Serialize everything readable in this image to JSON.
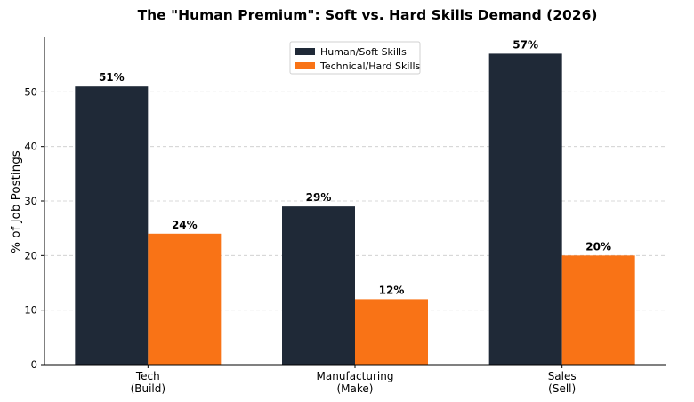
{
  "chart_data": {
    "type": "bar",
    "title": "The \"Human Premium\": Soft vs. Hard Skills Demand (2026)",
    "xlabel": "",
    "ylabel": "% of Job Postings",
    "categories": [
      [
        "Tech",
        "(Build)"
      ],
      [
        "Manufacturing",
        "(Make)"
      ],
      [
        "Sales",
        "(Sell)"
      ]
    ],
    "series": [
      {
        "name": "Human/Soft Skills",
        "color": "#1f2937",
        "values": [
          51,
          29,
          57
        ],
        "labels": [
          "51%",
          "29%",
          "57%"
        ]
      },
      {
        "name": "Technical/Hard Skills",
        "color": "#f97316",
        "values": [
          24,
          12,
          20
        ],
        "labels": [
          "24%",
          "12%",
          "20%"
        ]
      }
    ],
    "ylim": [
      0,
      60
    ],
    "yticks": [
      0,
      10,
      20,
      30,
      40,
      50
    ],
    "grid": true,
    "legend_position": "top-center"
  }
}
